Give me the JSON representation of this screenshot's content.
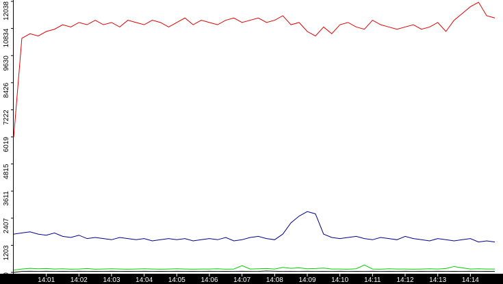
{
  "chart_data": {
    "type": "line",
    "x": [
      840,
      840.25,
      840.5,
      840.75,
      841,
      841.25,
      841.5,
      841.75,
      842,
      842.25,
      842.5,
      842.75,
      843,
      843.25,
      843.5,
      843.75,
      844,
      844.25,
      844.5,
      844.75,
      845,
      845.25,
      845.5,
      845.75,
      846,
      846.25,
      846.5,
      846.75,
      847,
      847.25,
      847.5,
      847.75,
      848,
      848.25,
      848.5,
      848.75,
      849,
      849.25,
      849.5,
      849.75,
      850,
      850.25,
      850.5,
      850.75,
      851,
      851.25,
      851.5,
      851.75,
      852,
      852.25,
      852.5,
      852.75,
      853,
      853.25,
      853.5,
      853.75,
      854,
      854.25,
      854.5,
      854.75
    ],
    "series": [
      {
        "color": "#e00000",
        "values": [
          6000,
          10400,
          10600,
          10500,
          10700,
          10800,
          11000,
          10900,
          11100,
          11000,
          11200,
          11000,
          11100,
          10900,
          11200,
          11100,
          11000,
          11200,
          11100,
          10900,
          11100,
          11300,
          11000,
          11200,
          11100,
          11000,
          11200,
          11300,
          11100,
          11200,
          11300,
          11100,
          11200,
          11400,
          11000,
          11100,
          10700,
          10500,
          10900,
          10600,
          11000,
          11100,
          10900,
          10800,
          11200,
          11000,
          10900,
          10800,
          10900,
          11000,
          10800,
          10900,
          11100,
          10700,
          11200,
          11500,
          11800,
          12000,
          11400,
          11300
        ]
      },
      {
        "color": "#00008c",
        "values": [
          1700,
          1750,
          1800,
          1700,
          1650,
          1750,
          1600,
          1550,
          1650,
          1500,
          1550,
          1500,
          1450,
          1550,
          1500,
          1450,
          1500,
          1400,
          1450,
          1500,
          1450,
          1500,
          1400,
          1450,
          1500,
          1450,
          1550,
          1400,
          1450,
          1550,
          1600,
          1500,
          1450,
          1700,
          2200,
          2500,
          2700,
          2600,
          1700,
          1550,
          1500,
          1550,
          1600,
          1500,
          1450,
          1550,
          1500,
          1450,
          1600,
          1500,
          1450,
          1400,
          1500,
          1450,
          1400,
          1450,
          1500,
          1350,
          1400,
          1350
        ]
      },
      {
        "color": "#00d000",
        "values": [
          100,
          150,
          180,
          160,
          170,
          150,
          160,
          140,
          150,
          170,
          140,
          150,
          160,
          150,
          140,
          150,
          160,
          150,
          140,
          150,
          160,
          150,
          140,
          150,
          150,
          160,
          140,
          150,
          300,
          150,
          160,
          170,
          150,
          220,
          180,
          200,
          160,
          170,
          190,
          150,
          150,
          140,
          160,
          330,
          150,
          140,
          160,
          150,
          150,
          140,
          150,
          160,
          150,
          170,
          260,
          200,
          150,
          160,
          150,
          150
        ]
      },
      {
        "color": "#000000",
        "values": [
          0,
          40,
          50,
          40,
          50,
          40,
          45,
          40,
          50,
          40,
          45,
          40,
          50,
          40,
          45,
          40,
          50,
          40,
          45,
          40,
          50,
          40,
          45,
          40,
          50,
          40,
          45,
          40,
          50,
          40,
          45,
          60,
          50,
          40,
          45,
          40,
          50,
          40,
          45,
          40,
          50,
          40,
          45,
          40,
          50,
          40,
          45,
          40,
          50,
          40,
          45,
          40,
          50,
          40,
          45,
          40,
          50,
          40,
          45,
          40
        ]
      }
    ],
    "xlim": [
      840,
      855
    ],
    "xticks": [
      {
        "value": 841,
        "label": "14:01"
      },
      {
        "value": 842,
        "label": "14:02"
      },
      {
        "value": 843,
        "label": "14:03"
      },
      {
        "value": 844,
        "label": "14:04"
      },
      {
        "value": 845,
        "label": "14:05"
      },
      {
        "value": 846,
        "label": "14:06"
      },
      {
        "value": 847,
        "label": "14:07"
      },
      {
        "value": 848,
        "label": "14:08"
      },
      {
        "value": 849,
        "label": "14:09"
      },
      {
        "value": 850,
        "label": "14:10"
      },
      {
        "value": 851,
        "label": "14:11"
      },
      {
        "value": 852,
        "label": "14:12"
      },
      {
        "value": 853,
        "label": "14:13"
      },
      {
        "value": 854,
        "label": "14:14"
      }
    ],
    "ylim": [
      0,
      12038
    ],
    "yticks": [
      0,
      1203,
      2407,
      3611,
      4815,
      6019,
      7222,
      8426,
      9630,
      10834,
      12038
    ]
  }
}
